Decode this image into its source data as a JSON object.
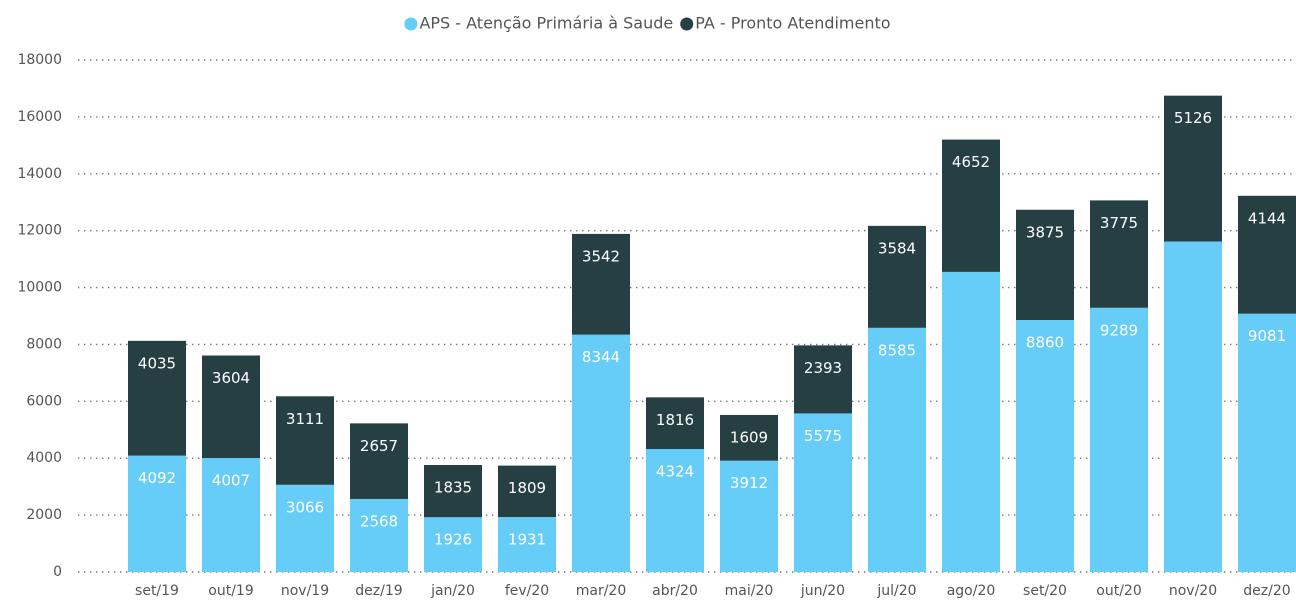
{
  "chart_data": {
    "type": "stacked_bar",
    "categories": [
      "set/19",
      "out/19",
      "nov/19",
      "dez/19",
      "jan/20",
      "fev/20",
      "mar/20",
      "abr/20",
      "mai/20",
      "jun/20",
      "jul/20",
      "ago/20",
      "set/20",
      "out/20",
      "nov/20",
      "dez/20"
    ],
    "series": [
      {
        "name": "APS - Atenção Primária à Saude",
        "color": "#66ccf8",
        "values": [
          4092,
          4007,
          3066,
          2568,
          1926,
          1931,
          8344,
          4324,
          3912,
          5575,
          8585,
          10550,
          8860,
          9289,
          11620,
          9081
        ],
        "value_labels": [
          "4092",
          "4007",
          "3066",
          "2568",
          "1926",
          "1931",
          "8344",
          "4324",
          "3912",
          "5575",
          "8585",
          null,
          "8860",
          "9289",
          null,
          "9081"
        ]
      },
      {
        "name": "PA - Pronto Atendimento",
        "color": "#253f42",
        "values": [
          4035,
          3604,
          3111,
          2657,
          1835,
          1809,
          3542,
          1816,
          1609,
          2393,
          3584,
          4652,
          3875,
          3775,
          5126,
          4144
        ]
      }
    ],
    "ylim": [
      0,
      18000
    ],
    "yticks": [
      0,
      2000,
      4000,
      6000,
      8000,
      10000,
      12000,
      14000,
      16000,
      18000
    ],
    "grid": true,
    "legend": "top"
  }
}
